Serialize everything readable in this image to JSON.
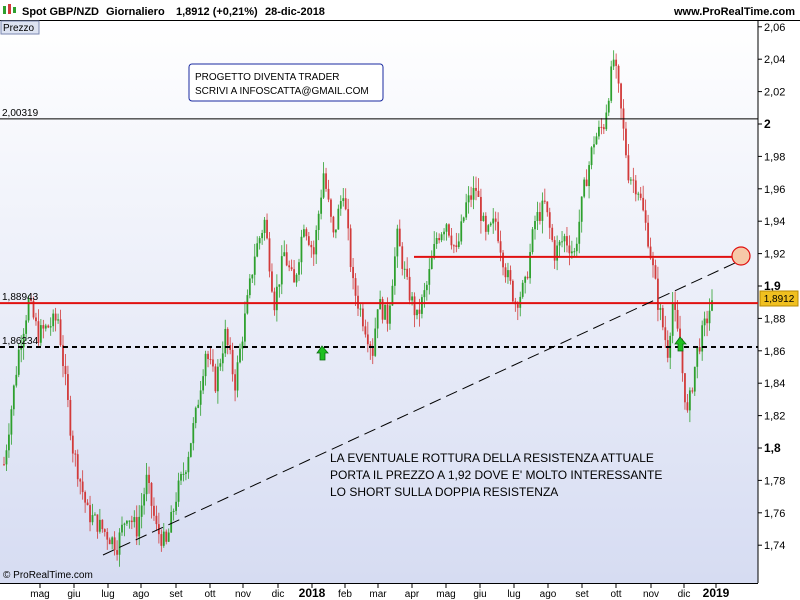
{
  "header": {
    "symbol": "Spot GBP/NZD",
    "period": "Giornaliero",
    "last": "1,8912 (+0,21%)",
    "date": "28-dic-2018",
    "site": "www.ProRealTime.com"
  },
  "panel_label": "Prezzo",
  "copyright": "© ProRealTime.com",
  "note_box": {
    "line1": "PROGETTO DIVENTA TRADER",
    "line2": "SCRIVI A INFOSCATTA@GMAIL.COM"
  },
  "annotation": {
    "line1": "LA EVENTUALE ROTTURA DELLA RESISTENZA ATTUALE",
    "line2": "PORTA IL PREZZO A 1,92 DOVE E' MOLTO INTERESSANTE",
    "line3": "LO SHORT SULLA DOPPIA RESISTENZA"
  },
  "colors": {
    "up": "#2ea02e",
    "down": "#d23a3a",
    "resistance": "#e01010",
    "price_badge": "#f0c020"
  },
  "chart_data": {
    "type": "candlestick",
    "ylim": [
      1.72,
      2.065
    ],
    "y_ticks": [
      {
        "value": 1.74,
        "label": "1,74"
      },
      {
        "value": 1.76,
        "label": "1,76"
      },
      {
        "value": 1.78,
        "label": "1,78"
      },
      {
        "value": 1.8,
        "label": "1,8",
        "bold": true
      },
      {
        "value": 1.82,
        "label": "1,82"
      },
      {
        "value": 1.84,
        "label": "1,84"
      },
      {
        "value": 1.86,
        "label": "1,86"
      },
      {
        "value": 1.88,
        "label": "1,88"
      },
      {
        "value": 1.9,
        "label": "1,9",
        "bold": true
      },
      {
        "value": 1.92,
        "label": "1,92"
      },
      {
        "value": 1.94,
        "label": "1,94"
      },
      {
        "value": 1.96,
        "label": "1,96"
      },
      {
        "value": 1.98,
        "label": "1,98"
      },
      {
        "value": 2.0,
        "label": "2",
        "bold": true
      },
      {
        "value": 2.02,
        "label": "2,02"
      },
      {
        "value": 2.04,
        "label": "2,04"
      },
      {
        "value": 2.06,
        "label": "2,06"
      }
    ],
    "x_ticks": [
      "mag",
      "giu",
      "lug",
      "ago",
      "set",
      "ott",
      "nov",
      "dic",
      "2018",
      "feb",
      "mar",
      "apr",
      "mag",
      "giu",
      "lug",
      "ago",
      "set",
      "ott",
      "nov",
      "dic",
      "2019"
    ],
    "x_ticks_bold": [
      "2018",
      "2019"
    ],
    "price_path": [
      [
        0,
        1.79
      ],
      [
        6,
        1.86
      ],
      [
        10,
        1.89
      ],
      [
        14,
        1.87
      ],
      [
        22,
        1.88
      ],
      [
        28,
        1.8
      ],
      [
        34,
        1.76
      ],
      [
        40,
        1.75
      ],
      [
        46,
        1.74
      ],
      [
        50,
        1.76
      ],
      [
        54,
        1.75
      ],
      [
        58,
        1.78
      ],
      [
        62,
        1.75
      ],
      [
        66,
        1.74
      ],
      [
        70,
        1.77
      ],
      [
        74,
        1.79
      ],
      [
        78,
        1.82
      ],
      [
        82,
        1.86
      ],
      [
        86,
        1.84
      ],
      [
        90,
        1.87
      ],
      [
        94,
        1.84
      ],
      [
        98,
        1.88
      ],
      [
        102,
        1.92
      ],
      [
        106,
        1.94
      ],
      [
        110,
        1.89
      ],
      [
        114,
        1.92
      ],
      [
        118,
        1.9
      ],
      [
        122,
        1.94
      ],
      [
        126,
        1.92
      ],
      [
        130,
        1.97
      ],
      [
        134,
        1.93
      ],
      [
        138,
        1.96
      ],
      [
        142,
        1.9
      ],
      [
        146,
        1.88
      ],
      [
        150,
        1.86
      ],
      [
        152,
        1.89
      ],
      [
        156,
        1.88
      ],
      [
        160,
        1.93
      ],
      [
        164,
        1.9
      ],
      [
        168,
        1.88
      ],
      [
        172,
        1.9
      ],
      [
        176,
        1.93
      ],
      [
        180,
        1.94
      ],
      [
        184,
        1.92
      ],
      [
        188,
        1.95
      ],
      [
        192,
        1.96
      ],
      [
        196,
        1.93
      ],
      [
        200,
        1.94
      ],
      [
        204,
        1.91
      ],
      [
        208,
        1.89
      ],
      [
        212,
        1.9
      ],
      [
        216,
        1.94
      ],
      [
        220,
        1.95
      ],
      [
        224,
        1.92
      ],
      [
        228,
        1.93
      ],
      [
        232,
        1.92
      ],
      [
        236,
        1.96
      ],
      [
        240,
        1.99
      ],
      [
        244,
        2.0
      ],
      [
        248,
        2.04
      ],
      [
        250,
        2.02
      ],
      [
        254,
        1.97
      ],
      [
        258,
        1.96
      ],
      [
        262,
        1.93
      ],
      [
        266,
        1.89
      ],
      [
        270,
        1.86
      ],
      [
        272,
        1.89
      ],
      [
        275,
        1.86
      ],
      [
        278,
        1.82
      ],
      [
        282,
        1.86
      ],
      [
        286,
        1.88
      ],
      [
        288,
        1.8912
      ]
    ],
    "last_price": 1.8912,
    "last_price_label": "1,8912",
    "levels": [
      {
        "name": "resistance-2",
        "value": 2.00319,
        "label": "2,00319",
        "color": "#000000",
        "style": "solid",
        "labelled": true
      },
      {
        "name": "resistance-1",
        "value": 1.88943,
        "label": "1,88943",
        "color": "#e01010",
        "style": "solid",
        "labelled": true
      },
      {
        "name": "support",
        "value": 1.86234,
        "label": "1,86234",
        "color": "#000000",
        "style": "dashed",
        "labelled": true
      },
      {
        "name": "target-1-92",
        "value": 1.918,
        "label": "",
        "color": "#e01010",
        "style": "solid",
        "labelled": false
      }
    ],
    "trendline": {
      "from": [
        1.734,
        0
      ],
      "to": [
        1.918,
        1
      ]
    }
  }
}
